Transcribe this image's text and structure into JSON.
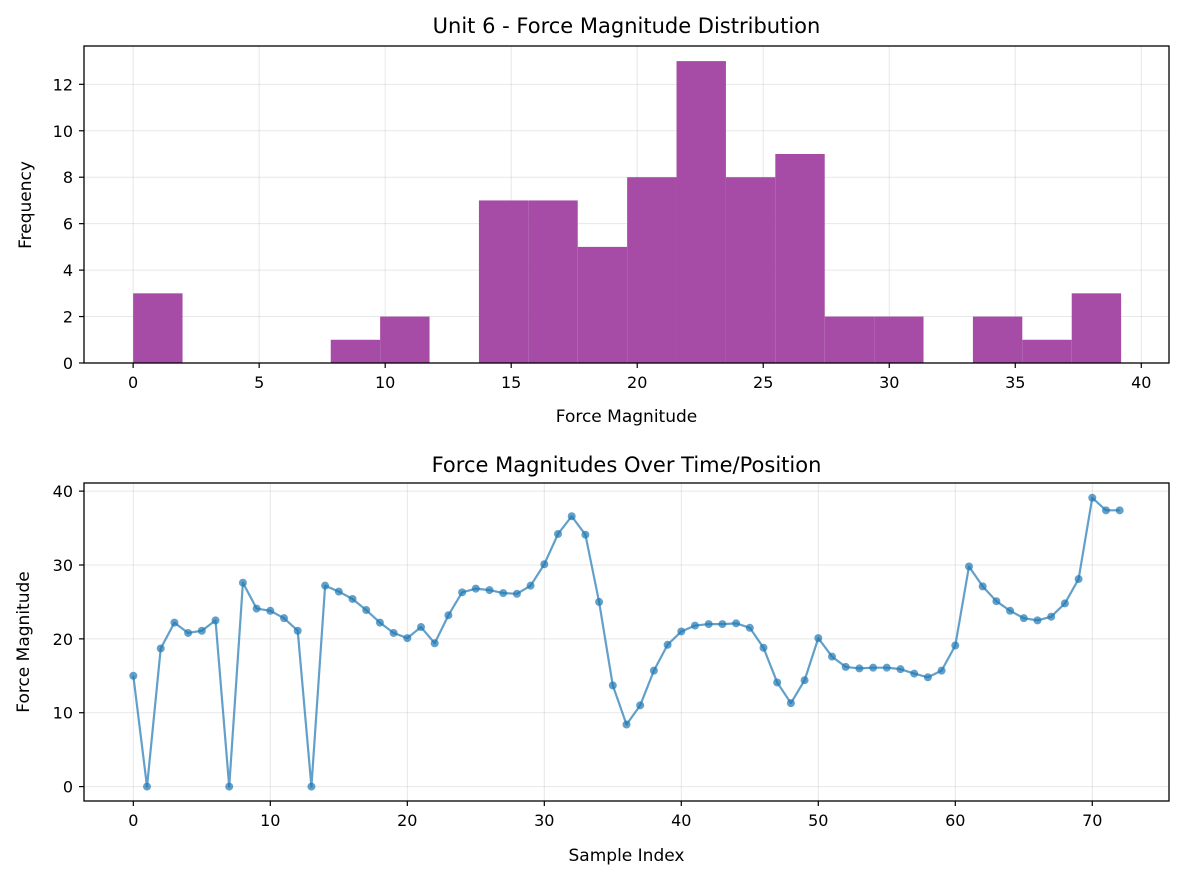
{
  "chart_data": [
    {
      "type": "bar",
      "title": "Unit 6 - Force Magnitude Distribution",
      "xlabel": "Force Magnitude",
      "ylabel": "Frequency",
      "xlim": [
        -1.95,
        41.1
      ],
      "ylim": [
        0,
        13.65
      ],
      "xticks": [
        0,
        5,
        10,
        15,
        20,
        25,
        30,
        35,
        40
      ],
      "yticks": [
        0,
        2,
        4,
        6,
        8,
        10,
        12
      ],
      "grid": true,
      "color": "#a64ca6",
      "bin_edges": [
        0,
        1.96,
        3.92,
        5.88,
        7.84,
        9.8,
        11.76,
        13.72,
        15.68,
        17.64,
        19.6,
        21.56,
        23.52,
        25.48,
        27.44,
        29.4,
        31.36,
        33.32,
        35.28,
        37.24,
        39.2
      ],
      "counts": [
        3,
        0,
        0,
        0,
        1,
        2,
        0,
        7,
        7,
        5,
        8,
        13,
        8,
        9,
        2,
        2,
        0,
        2,
        1,
        3
      ]
    },
    {
      "type": "line",
      "title": "Force Magnitudes Over Time/Position",
      "xlabel": "Sample Index",
      "ylabel": "Force Magnitude",
      "xlim": [
        -3.6,
        75.6
      ],
      "ylim": [
        -1.95,
        41.1
      ],
      "xticks": [
        0,
        10,
        20,
        30,
        40,
        50,
        60,
        70
      ],
      "yticks": [
        0,
        10,
        20,
        30,
        40
      ],
      "grid": true,
      "color": "#1f77b4",
      "x": [
        0,
        1,
        2,
        3,
        4,
        5,
        6,
        7,
        8,
        9,
        10,
        11,
        12,
        13,
        14,
        15,
        16,
        17,
        18,
        19,
        20,
        21,
        22,
        23,
        24,
        25,
        26,
        27,
        28,
        29,
        30,
        31,
        32,
        33,
        34,
        35,
        36,
        37,
        38,
        39,
        40,
        41,
        42,
        43,
        44,
        45,
        46,
        47,
        48,
        49,
        50,
        51,
        52,
        53,
        54,
        55,
        56,
        57,
        58,
        59,
        60,
        61,
        62,
        63,
        64,
        65,
        66,
        67,
        68,
        69,
        70,
        71,
        72
      ],
      "y": [
        15.0,
        0,
        18.7,
        22.2,
        20.8,
        21.1,
        22.5,
        0,
        27.6,
        24.1,
        23.8,
        22.8,
        21.1,
        0,
        27.2,
        26.4,
        25.4,
        23.9,
        22.2,
        20.8,
        20.1,
        21.6,
        19.4,
        23.2,
        26.3,
        26.8,
        26.6,
        26.2,
        26.1,
        27.2,
        30.1,
        34.2,
        36.6,
        34.1,
        25.0,
        13.7,
        8.4,
        11.0,
        15.7,
        19.2,
        21.0,
        21.8,
        22.0,
        22.0,
        22.1,
        21.5,
        18.8,
        14.1,
        11.3,
        14.4,
        20.1,
        17.6,
        16.2,
        16.0,
        16.1,
        16.1,
        15.9,
        15.3,
        14.8,
        15.7,
        19.1,
        29.8,
        27.1,
        25.1,
        23.8,
        22.8,
        22.5,
        23.0,
        24.8,
        28.1,
        39.1,
        37.4,
        37.4
      ]
    }
  ]
}
